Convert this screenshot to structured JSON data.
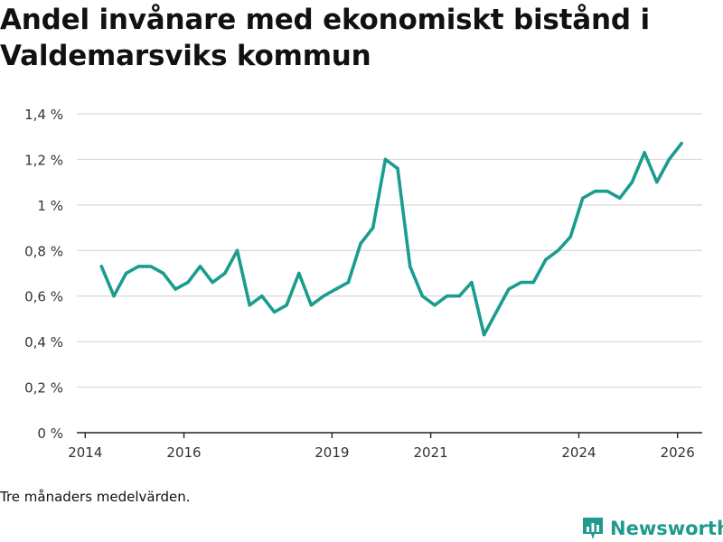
{
  "title": "Andel invånare med ekonomiskt bistånd i Valdemarsviks kommun",
  "note": "Tre månaders medelvärden.",
  "brand": "Newsworthy",
  "colors": {
    "line": "#1a9c8f",
    "grid": "#d9d9d9",
    "axis": "#222222",
    "brand": "#1f9a8c"
  },
  "chart_data": {
    "type": "line",
    "title": "Andel invånare med ekonomiskt bistånd i Valdemarsviks kommun",
    "xlabel": "",
    "ylabel": "",
    "xlim": [
      2013.83,
      2026.5
    ],
    "ylim": [
      0,
      1.4
    ],
    "yticks": [
      {
        "value": 0,
        "label": "0 %"
      },
      {
        "value": 0.2,
        "label": "0,2 %"
      },
      {
        "value": 0.4,
        "label": "0,4 %"
      },
      {
        "value": 0.6,
        "label": "0,6 %"
      },
      {
        "value": 0.8,
        "label": "0,8 %"
      },
      {
        "value": 1.0,
        "label": "1 %"
      },
      {
        "value": 1.2,
        "label": "1,2 %"
      },
      {
        "value": 1.4,
        "label": "1,4 %"
      }
    ],
    "xticks": [
      {
        "value": 2014,
        "label": "2014"
      },
      {
        "value": 2016,
        "label": "2016"
      },
      {
        "value": 2019,
        "label": "2019"
      },
      {
        "value": 2021,
        "label": "2021"
      },
      {
        "value": 2024,
        "label": "2024"
      },
      {
        "value": 2026,
        "label": "2026"
      }
    ],
    "series": [
      {
        "name": "Andel invånare med ekonomiskt bistånd",
        "x": [
          2014.33,
          2014.58,
          2014.83,
          2015.08,
          2015.33,
          2015.58,
          2015.83,
          2016.08,
          2016.33,
          2016.58,
          2016.83,
          2017.08,
          2017.33,
          2017.58,
          2017.83,
          2018.08,
          2018.33,
          2018.58,
          2018.83,
          2019.08,
          2019.33,
          2019.58,
          2019.83,
          2020.08,
          2020.33,
          2020.58,
          2020.83,
          2021.08,
          2021.33,
          2021.58,
          2021.83,
          2022.08,
          2022.33,
          2022.58,
          2022.83,
          2023.08,
          2023.33,
          2023.58,
          2023.83,
          2024.08,
          2024.33,
          2024.58,
          2024.83,
          2025.08,
          2025.33,
          2025.58,
          2025.83,
          2026.08
        ],
        "values": [
          0.73,
          0.6,
          0.7,
          0.73,
          0.73,
          0.7,
          0.63,
          0.66,
          0.73,
          0.66,
          0.7,
          0.8,
          0.56,
          0.6,
          0.53,
          0.56,
          0.7,
          0.56,
          0.6,
          0.63,
          0.66,
          0.83,
          0.9,
          1.2,
          1.16,
          0.73,
          0.6,
          0.56,
          0.6,
          0.6,
          0.66,
          0.43,
          0.53,
          0.63,
          0.66,
          0.66,
          0.76,
          0.8,
          0.86,
          1.03,
          1.06,
          1.06,
          1.03,
          1.1,
          1.23,
          1.1,
          1.2,
          1.27
        ]
      }
    ]
  }
}
